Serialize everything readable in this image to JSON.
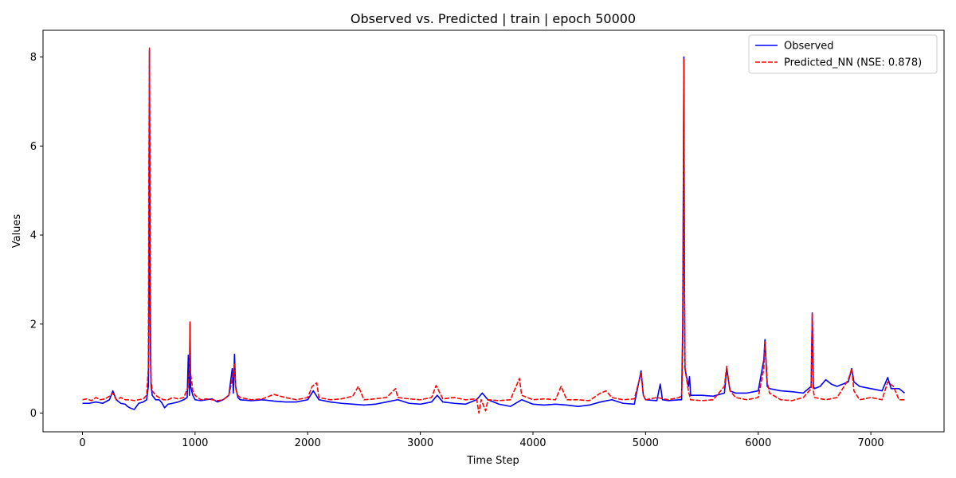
{
  "chart_data": {
    "type": "line",
    "title": "Observed vs. Predicted | train | epoch 50000",
    "xlabel": "Time Step",
    "ylabel": "Values",
    "xlim": [
      -350,
      7650
    ],
    "ylim": [
      -0.42,
      8.6
    ],
    "xticks": [
      0,
      1000,
      2000,
      3000,
      4000,
      5000,
      6000,
      7000
    ],
    "yticks": [
      0,
      2,
      4,
      6,
      8
    ],
    "grid": false,
    "legend": {
      "placement": "top-right"
    },
    "series": [
      {
        "name": "Observed",
        "color": "#0000ff",
        "style": "solid",
        "points": [
          [
            0,
            0.22
          ],
          [
            60,
            0.22
          ],
          [
            120,
            0.25
          ],
          [
            180,
            0.22
          ],
          [
            240,
            0.3
          ],
          [
            270,
            0.5
          ],
          [
            300,
            0.3
          ],
          [
            340,
            0.22
          ],
          [
            380,
            0.2
          ],
          [
            400,
            0.15
          ],
          [
            420,
            0.12
          ],
          [
            440,
            0.1
          ],
          [
            460,
            0.08
          ],
          [
            480,
            0.15
          ],
          [
            500,
            0.22
          ],
          [
            540,
            0.25
          ],
          [
            570,
            0.3
          ],
          [
            585,
            0.6
          ],
          [
            590,
            2.0
          ],
          [
            595,
            8.15
          ],
          [
            600,
            3.5
          ],
          [
            605,
            1.2
          ],
          [
            610,
            0.6
          ],
          [
            620,
            0.4
          ],
          [
            650,
            0.3
          ],
          [
            680,
            0.3
          ],
          [
            700,
            0.25
          ],
          [
            730,
            0.12
          ],
          [
            760,
            0.2
          ],
          [
            800,
            0.22
          ],
          [
            850,
            0.25
          ],
          [
            900,
            0.3
          ],
          [
            930,
            0.35
          ],
          [
            940,
            1.3
          ],
          [
            950,
            0.4
          ],
          [
            955,
            2.0
          ],
          [
            960,
            0.6
          ],
          [
            980,
            0.4
          ],
          [
            1000,
            0.3
          ],
          [
            1050,
            0.28
          ],
          [
            1100,
            0.3
          ],
          [
            1150,
            0.32
          ],
          [
            1200,
            0.25
          ],
          [
            1250,
            0.3
          ],
          [
            1300,
            0.4
          ],
          [
            1330,
            1.0
          ],
          [
            1340,
            0.45
          ],
          [
            1350,
            1.32
          ],
          [
            1360,
            0.6
          ],
          [
            1380,
            0.35
          ],
          [
            1400,
            0.3
          ],
          [
            1500,
            0.28
          ],
          [
            1600,
            0.3
          ],
          [
            1700,
            0.27
          ],
          [
            1800,
            0.25
          ],
          [
            1900,
            0.25
          ],
          [
            2000,
            0.3
          ],
          [
            2050,
            0.5
          ],
          [
            2100,
            0.3
          ],
          [
            2200,
            0.25
          ],
          [
            2300,
            0.22
          ],
          [
            2400,
            0.2
          ],
          [
            2500,
            0.18
          ],
          [
            2600,
            0.2
          ],
          [
            2700,
            0.25
          ],
          [
            2800,
            0.3
          ],
          [
            2900,
            0.22
          ],
          [
            3000,
            0.2
          ],
          [
            3100,
            0.25
          ],
          [
            3150,
            0.4
          ],
          [
            3200,
            0.25
          ],
          [
            3300,
            0.22
          ],
          [
            3400,
            0.2
          ],
          [
            3500,
            0.3
          ],
          [
            3550,
            0.45
          ],
          [
            3600,
            0.3
          ],
          [
            3700,
            0.2
          ],
          [
            3800,
            0.15
          ],
          [
            3900,
            0.3
          ],
          [
            4000,
            0.2
          ],
          [
            4100,
            0.18
          ],
          [
            4200,
            0.2
          ],
          [
            4300,
            0.18
          ],
          [
            4400,
            0.15
          ],
          [
            4500,
            0.18
          ],
          [
            4600,
            0.25
          ],
          [
            4700,
            0.3
          ],
          [
            4800,
            0.22
          ],
          [
            4900,
            0.2
          ],
          [
            4960,
            0.95
          ],
          [
            4980,
            0.4
          ],
          [
            5000,
            0.3
          ],
          [
            5100,
            0.28
          ],
          [
            5130,
            0.65
          ],
          [
            5150,
            0.3
          ],
          [
            5200,
            0.28
          ],
          [
            5300,
            0.3
          ],
          [
            5320,
            0.3
          ],
          [
            5330,
            2.0
          ],
          [
            5340,
            8.0
          ],
          [
            5345,
            3.0
          ],
          [
            5350,
            1.0
          ],
          [
            5380,
            0.6
          ],
          [
            5390,
            0.82
          ],
          [
            5400,
            0.4
          ],
          [
            5500,
            0.4
          ],
          [
            5600,
            0.38
          ],
          [
            5700,
            0.45
          ],
          [
            5720,
            1.0
          ],
          [
            5750,
            0.5
          ],
          [
            5800,
            0.45
          ],
          [
            5900,
            0.45
          ],
          [
            6000,
            0.5
          ],
          [
            6050,
            1.2
          ],
          [
            6060,
            1.65
          ],
          [
            6080,
            0.6
          ],
          [
            6100,
            0.55
          ],
          [
            6200,
            0.5
          ],
          [
            6300,
            0.48
          ],
          [
            6400,
            0.45
          ],
          [
            6470,
            0.6
          ],
          [
            6480,
            2.25
          ],
          [
            6490,
            0.6
          ],
          [
            6500,
            0.55
          ],
          [
            6550,
            0.6
          ],
          [
            6600,
            0.75
          ],
          [
            6650,
            0.65
          ],
          [
            6700,
            0.6
          ],
          [
            6800,
            0.7
          ],
          [
            6830,
            1.0
          ],
          [
            6850,
            0.7
          ],
          [
            6900,
            0.6
          ],
          [
            7000,
            0.55
          ],
          [
            7100,
            0.5
          ],
          [
            7150,
            0.8
          ],
          [
            7180,
            0.55
          ],
          [
            7250,
            0.55
          ],
          [
            7300,
            0.45
          ]
        ]
      },
      {
        "name": "Predicted_NN  (NSE: 0.878)",
        "color": "#ff0000",
        "style": "dashed",
        "points": [
          [
            0,
            0.3
          ],
          [
            40,
            0.32
          ],
          [
            80,
            0.28
          ],
          [
            120,
            0.35
          ],
          [
            160,
            0.3
          ],
          [
            200,
            0.32
          ],
          [
            240,
            0.38
          ],
          [
            270,
            0.45
          ],
          [
            300,
            0.3
          ],
          [
            340,
            0.35
          ],
          [
            380,
            0.3
          ],
          [
            420,
            0.3
          ],
          [
            460,
            0.28
          ],
          [
            500,
            0.3
          ],
          [
            540,
            0.32
          ],
          [
            570,
            0.4
          ],
          [
            585,
            1.0
          ],
          [
            590,
            5.6
          ],
          [
            595,
            8.2
          ],
          [
            600,
            5.0
          ],
          [
            605,
            1.7
          ],
          [
            610,
            0.7
          ],
          [
            620,
            0.5
          ],
          [
            650,
            0.4
          ],
          [
            680,
            0.35
          ],
          [
            720,
            0.3
          ],
          [
            760,
            0.3
          ],
          [
            800,
            0.35
          ],
          [
            850,
            0.32
          ],
          [
            900,
            0.35
          ],
          [
            940,
            0.6
          ],
          [
            950,
            1.0
          ],
          [
            955,
            2.05
          ],
          [
            960,
            0.9
          ],
          [
            980,
            0.5
          ],
          [
            1000,
            0.4
          ],
          [
            1050,
            0.3
          ],
          [
            1100,
            0.32
          ],
          [
            1150,
            0.3
          ],
          [
            1200,
            0.28
          ],
          [
            1250,
            0.3
          ],
          [
            1300,
            0.4
          ],
          [
            1330,
            0.75
          ],
          [
            1350,
            1.1
          ],
          [
            1360,
            0.55
          ],
          [
            1380,
            0.4
          ],
          [
            1400,
            0.35
          ],
          [
            1500,
            0.3
          ],
          [
            1600,
            0.32
          ],
          [
            1700,
            0.42
          ],
          [
            1800,
            0.35
          ],
          [
            1900,
            0.3
          ],
          [
            2000,
            0.35
          ],
          [
            2040,
            0.6
          ],
          [
            2080,
            0.68
          ],
          [
            2100,
            0.35
          ],
          [
            2200,
            0.3
          ],
          [
            2300,
            0.32
          ],
          [
            2400,
            0.38
          ],
          [
            2450,
            0.6
          ],
          [
            2500,
            0.3
          ],
          [
            2600,
            0.32
          ],
          [
            2700,
            0.35
          ],
          [
            2780,
            0.55
          ],
          [
            2800,
            0.35
          ],
          [
            2900,
            0.32
          ],
          [
            3000,
            0.3
          ],
          [
            3100,
            0.35
          ],
          [
            3140,
            0.62
          ],
          [
            3200,
            0.32
          ],
          [
            3300,
            0.35
          ],
          [
            3400,
            0.3
          ],
          [
            3500,
            0.32
          ],
          [
            3520,
            0.0
          ],
          [
            3540,
            0.3
          ],
          [
            3580,
            0.05
          ],
          [
            3600,
            0.3
          ],
          [
            3700,
            0.28
          ],
          [
            3800,
            0.3
          ],
          [
            3880,
            0.78
          ],
          [
            3900,
            0.4
          ],
          [
            4000,
            0.3
          ],
          [
            4100,
            0.32
          ],
          [
            4200,
            0.3
          ],
          [
            4250,
            0.6
          ],
          [
            4300,
            0.3
          ],
          [
            4400,
            0.3
          ],
          [
            4500,
            0.28
          ],
          [
            4600,
            0.45
          ],
          [
            4650,
            0.5
          ],
          [
            4700,
            0.35
          ],
          [
            4800,
            0.3
          ],
          [
            4900,
            0.32
          ],
          [
            4960,
            0.9
          ],
          [
            4980,
            0.4
          ],
          [
            5000,
            0.3
          ],
          [
            5100,
            0.35
          ],
          [
            5200,
            0.3
          ],
          [
            5300,
            0.35
          ],
          [
            5320,
            0.4
          ],
          [
            5330,
            1.5
          ],
          [
            5340,
            7.95
          ],
          [
            5345,
            2.8
          ],
          [
            5350,
            1.0
          ],
          [
            5380,
            0.5
          ],
          [
            5400,
            0.3
          ],
          [
            5500,
            0.28
          ],
          [
            5600,
            0.3
          ],
          [
            5700,
            0.6
          ],
          [
            5720,
            1.05
          ],
          [
            5750,
            0.5
          ],
          [
            5800,
            0.35
          ],
          [
            5900,
            0.3
          ],
          [
            6000,
            0.35
          ],
          [
            6050,
            1.0
          ],
          [
            6060,
            1.6
          ],
          [
            6080,
            0.7
          ],
          [
            6100,
            0.45
          ],
          [
            6200,
            0.3
          ],
          [
            6300,
            0.28
          ],
          [
            6400,
            0.35
          ],
          [
            6470,
            0.55
          ],
          [
            6480,
            2.25
          ],
          [
            6490,
            0.5
          ],
          [
            6500,
            0.35
          ],
          [
            6600,
            0.3
          ],
          [
            6700,
            0.35
          ],
          [
            6800,
            0.75
          ],
          [
            6830,
            1.0
          ],
          [
            6850,
            0.5
          ],
          [
            6900,
            0.3
          ],
          [
            7000,
            0.35
          ],
          [
            7100,
            0.3
          ],
          [
            7150,
            0.7
          ],
          [
            7200,
            0.6
          ],
          [
            7250,
            0.3
          ],
          [
            7300,
            0.3
          ]
        ]
      }
    ]
  }
}
